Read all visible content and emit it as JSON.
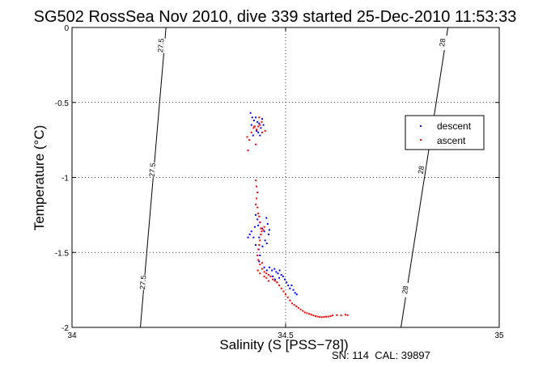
{
  "chart_data": {
    "type": "scatter",
    "title": "SG502 RossSea Nov 2010, dive 339 started 25-Dec-2010 11:53:33",
    "xlabel": "Salinity (S [PSS−78])",
    "ylabel": "Temperature (°C)",
    "xlim": [
      34,
      35
    ],
    "ylim": [
      -2,
      0
    ],
    "x_ticks": [
      "34",
      "34.5",
      "35"
    ],
    "y_ticks": [
      "0",
      "-0.5",
      "-1",
      "-1.5",
      "-2"
    ],
    "grid": true,
    "legend_position": "right",
    "footer": "SN: 114  CAL: 39897",
    "isopycnals": [
      {
        "label": "27.5",
        "color": "#000000",
        "points": [
          [
            34.22,
            0
          ],
          [
            34.16,
            -2
          ]
        ],
        "label_positions": [
          [
            34.208,
            -0.12
          ],
          [
            34.188,
            -0.95
          ],
          [
            34.166,
            -1.7
          ]
        ]
      },
      {
        "label": "28",
        "color": "#000000",
        "points": [
          [
            34.88,
            0
          ],
          [
            34.77,
            -2
          ]
        ],
        "label_positions": [
          [
            34.867,
            -0.1
          ],
          [
            34.817,
            -0.95
          ],
          [
            34.78,
            -1.75
          ]
        ]
      }
    ],
    "series": [
      {
        "name": "descent",
        "color": "#0000ff",
        "points": [
          [
            34.418,
            -0.57
          ],
          [
            34.422,
            -0.6
          ],
          [
            34.426,
            -0.62
          ],
          [
            34.43,
            -0.6
          ],
          [
            34.434,
            -0.63
          ],
          [
            34.427,
            -0.66
          ],
          [
            34.438,
            -0.64
          ],
          [
            34.442,
            -0.67
          ],
          [
            34.432,
            -0.69
          ],
          [
            34.424,
            -0.72
          ],
          [
            34.445,
            -0.61
          ],
          [
            34.448,
            -0.65
          ],
          [
            34.436,
            -0.7
          ],
          [
            34.42,
            -0.65
          ],
          [
            34.44,
            -0.72
          ],
          [
            34.43,
            -1.25
          ],
          [
            34.434,
            -1.28
          ],
          [
            34.44,
            -1.3
          ],
          [
            34.436,
            -1.32
          ],
          [
            34.428,
            -1.33
          ],
          [
            34.445,
            -1.34
          ],
          [
            34.45,
            -1.36
          ],
          [
            34.442,
            -1.38
          ],
          [
            34.438,
            -1.4
          ],
          [
            34.452,
            -1.42
          ],
          [
            34.456,
            -1.44
          ],
          [
            34.446,
            -1.46
          ],
          [
            34.437,
            -1.48
          ],
          [
            34.43,
            -1.45
          ],
          [
            34.425,
            -1.4
          ],
          [
            34.42,
            -1.36
          ],
          [
            34.416,
            -1.38
          ],
          [
            34.412,
            -1.4
          ],
          [
            34.46,
            -1.38
          ],
          [
            34.462,
            -1.35
          ],
          [
            34.458,
            -1.31
          ],
          [
            34.455,
            -1.27
          ],
          [
            34.44,
            -1.52
          ],
          [
            34.438,
            -1.56
          ],
          [
            34.45,
            -1.6
          ],
          [
            34.456,
            -1.62
          ],
          [
            34.462,
            -1.6
          ],
          [
            34.468,
            -1.62
          ],
          [
            34.474,
            -1.61
          ],
          [
            34.478,
            -1.63
          ],
          [
            34.482,
            -1.64
          ],
          [
            34.486,
            -1.62
          ],
          [
            34.49,
            -1.65
          ],
          [
            34.494,
            -1.66
          ],
          [
            34.498,
            -1.68
          ],
          [
            34.502,
            -1.7
          ],
          [
            34.506,
            -1.72
          ],
          [
            34.51,
            -1.74
          ],
          [
            34.514,
            -1.72
          ],
          [
            34.518,
            -1.75
          ],
          [
            34.522,
            -1.77
          ],
          [
            34.526,
            -1.78
          ],
          [
            34.47,
            -1.66
          ],
          [
            34.475,
            -1.68
          ],
          [
            34.48,
            -1.7
          ],
          [
            34.485,
            -1.67
          ]
        ]
      },
      {
        "name": "ascent",
        "color": "#ff0000",
        "points": [
          [
            34.41,
            -0.73
          ],
          [
            34.415,
            -0.75
          ],
          [
            34.42,
            -0.7
          ],
          [
            34.425,
            -0.67
          ],
          [
            34.428,
            -0.66
          ],
          [
            34.432,
            -0.68
          ],
          [
            34.436,
            -0.66
          ],
          [
            34.44,
            -0.65
          ],
          [
            34.444,
            -0.63
          ],
          [
            34.438,
            -0.6
          ],
          [
            34.43,
            -0.78
          ],
          [
            34.445,
            -0.7
          ],
          [
            34.452,
            -0.69
          ],
          [
            34.412,
            -0.82
          ],
          [
            34.43,
            -1.02
          ],
          [
            34.432,
            -1.06
          ],
          [
            34.434,
            -1.1
          ],
          [
            34.432,
            -1.14
          ],
          [
            34.43,
            -1.18
          ],
          [
            34.434,
            -1.2
          ],
          [
            34.436,
            -1.24
          ],
          [
            34.438,
            -1.26
          ],
          [
            34.44,
            -1.3
          ],
          [
            34.442,
            -1.34
          ],
          [
            34.444,
            -1.36
          ],
          [
            34.442,
            -1.38
          ],
          [
            34.44,
            -1.42
          ],
          [
            34.438,
            -1.45
          ],
          [
            34.436,
            -1.48
          ],
          [
            34.434,
            -1.52
          ],
          [
            34.436,
            -1.55
          ],
          [
            34.44,
            -1.58
          ],
          [
            34.445,
            -1.61
          ],
          [
            34.45,
            -1.63
          ],
          [
            34.455,
            -1.64
          ],
          [
            34.46,
            -1.65
          ],
          [
            34.465,
            -1.66
          ],
          [
            34.47,
            -1.68
          ],
          [
            34.475,
            -1.69
          ],
          [
            34.48,
            -1.7
          ],
          [
            34.485,
            -1.72
          ],
          [
            34.49,
            -1.74
          ],
          [
            34.495,
            -1.76
          ],
          [
            34.5,
            -1.78
          ],
          [
            34.505,
            -1.8
          ],
          [
            34.51,
            -1.82
          ],
          [
            34.515,
            -1.84
          ],
          [
            34.52,
            -1.85
          ],
          [
            34.525,
            -1.86
          ],
          [
            34.53,
            -1.87
          ],
          [
            34.535,
            -1.88
          ],
          [
            34.54,
            -1.89
          ],
          [
            34.545,
            -1.9
          ],
          [
            34.55,
            -1.905
          ],
          [
            34.555,
            -1.91
          ],
          [
            34.56,
            -1.915
          ],
          [
            34.565,
            -1.92
          ],
          [
            34.57,
            -1.925
          ],
          [
            34.575,
            -1.928
          ],
          [
            34.58,
            -1.93
          ],
          [
            34.585,
            -1.932
          ],
          [
            34.59,
            -1.93
          ],
          [
            34.595,
            -1.928
          ],
          [
            34.6,
            -1.928
          ],
          [
            34.605,
            -1.925
          ],
          [
            34.61,
            -1.92
          ],
          [
            34.62,
            -1.918
          ],
          [
            34.63,
            -1.92
          ],
          [
            34.64,
            -1.915
          ],
          [
            34.645,
            -1.918
          ],
          [
            34.45,
            -1.66
          ],
          [
            34.455,
            -1.67
          ],
          [
            34.46,
            -1.69
          ],
          [
            34.44,
            -1.64
          ],
          [
            34.435,
            -1.62
          ],
          [
            34.445,
            -1.57
          ],
          [
            34.448,
            -1.35
          ],
          [
            34.45,
            -1.33
          ]
        ]
      }
    ]
  }
}
